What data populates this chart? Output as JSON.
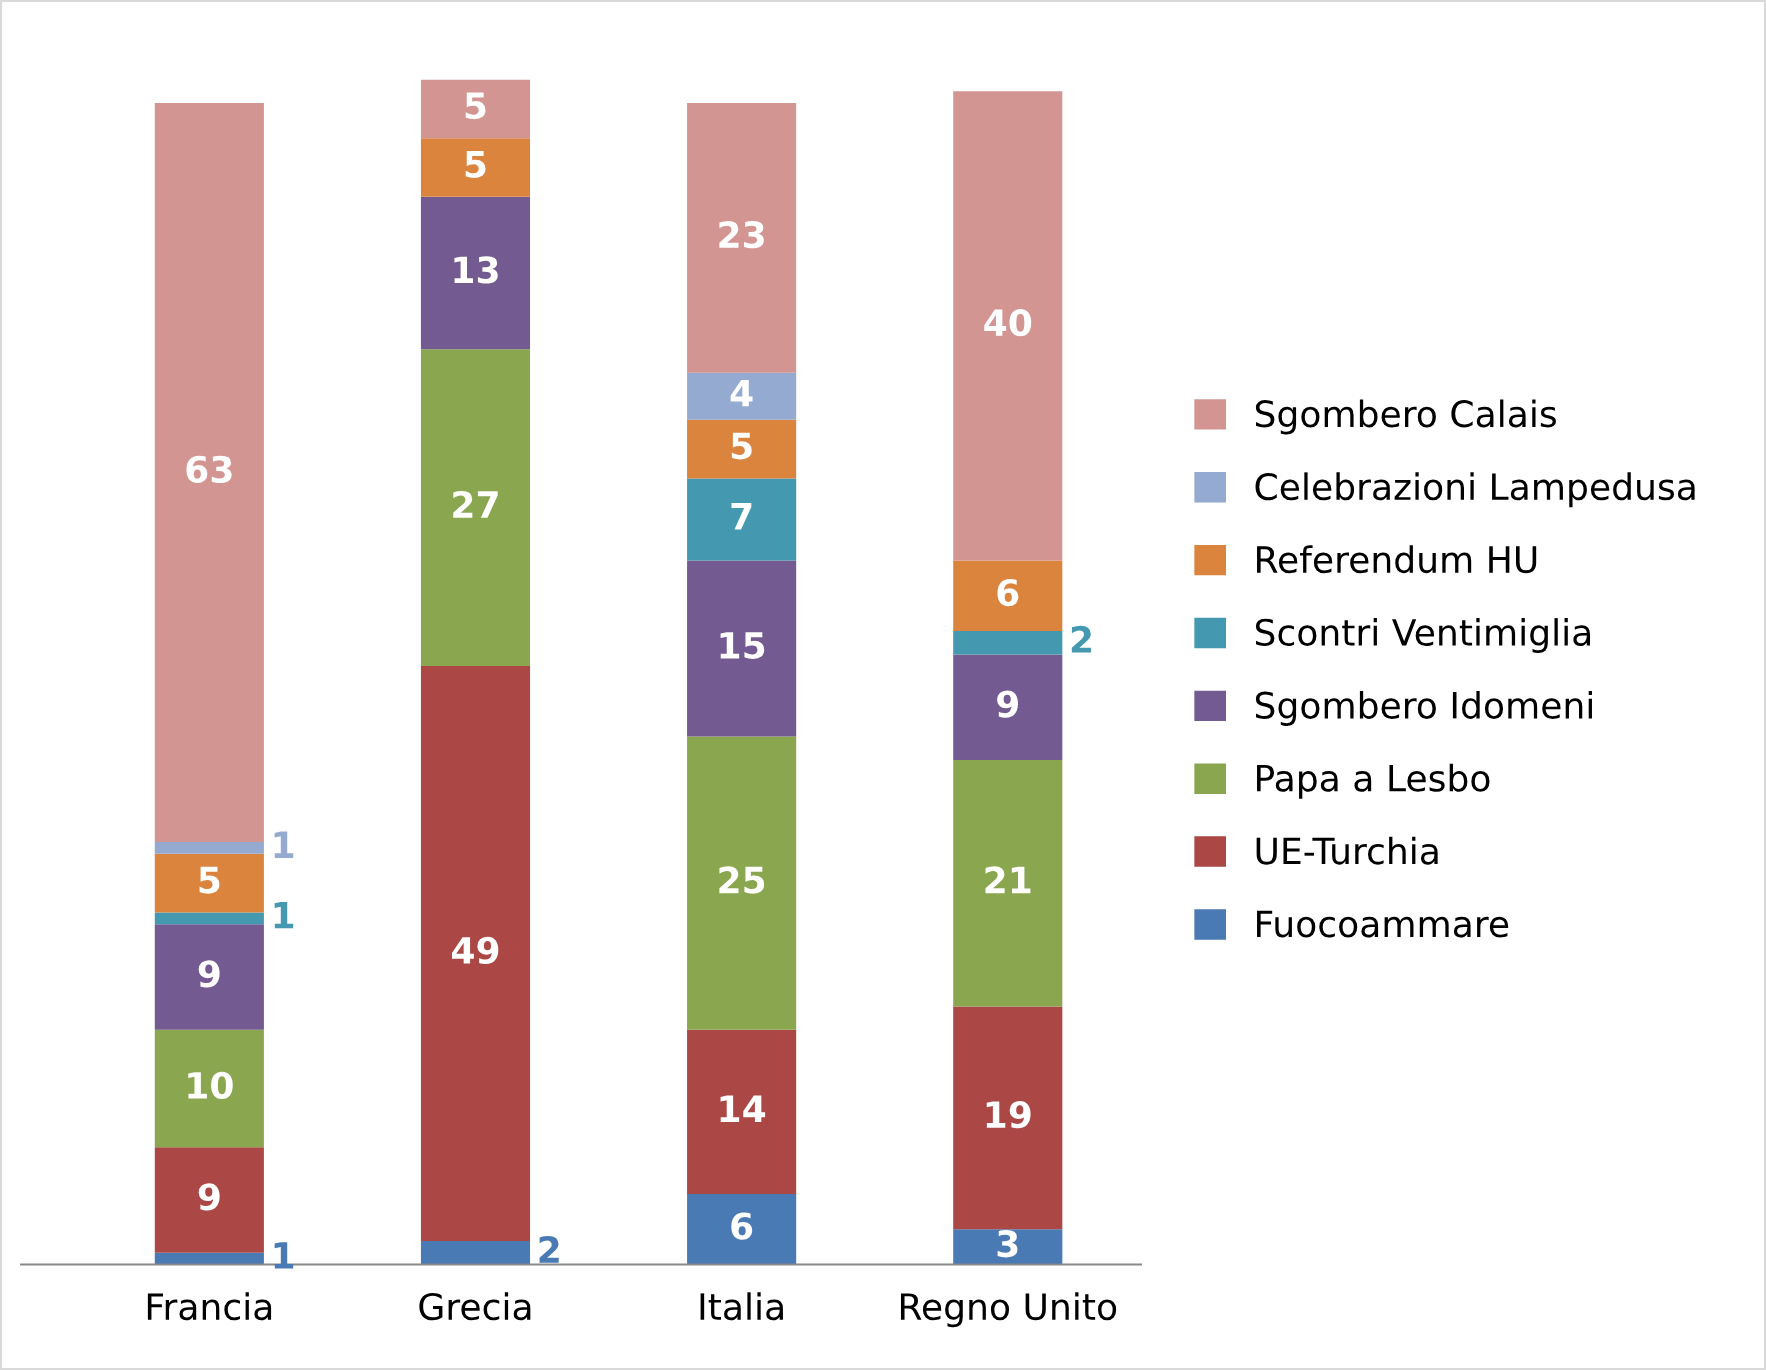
{
  "chart_data": {
    "type": "bar",
    "stacked": true,
    "categories": [
      "Francia",
      "Grecia",
      "Italia",
      "Regno Unito"
    ],
    "series": [
      {
        "name": "Fuocoammare",
        "color": "#4a7ab4",
        "values": [
          1,
          2,
          6,
          3
        ]
      },
      {
        "name": "UE-Turchia",
        "color": "#ab4744",
        "values": [
          9,
          49,
          14,
          19
        ]
      },
      {
        "name": "Papa a Lesbo",
        "color": "#8aa64f",
        "values": [
          10,
          27,
          25,
          21
        ]
      },
      {
        "name": "Sgombero Idomeni",
        "color": "#735a91",
        "values": [
          9,
          13,
          15,
          9
        ]
      },
      {
        "name": "Scontri Ventimiglia",
        "color": "#4499b0",
        "values": [
          1,
          null,
          7,
          2
        ]
      },
      {
        "name": "Referendum HU",
        "color": "#db843e",
        "values": [
          5,
          5,
          5,
          6
        ]
      },
      {
        "name": "Celebrazioni Lampedusa",
        "color": "#95aad1",
        "values": [
          1,
          null,
          4,
          null
        ]
      },
      {
        "name": "Sgombero Calais",
        "color": "#d39592",
        "values": [
          63,
          5,
          23,
          40
        ]
      }
    ],
    "ylim": [
      0,
      101
    ],
    "tick_labels": "x",
    "data_labels": true,
    "legend": "right",
    "grid": false
  }
}
